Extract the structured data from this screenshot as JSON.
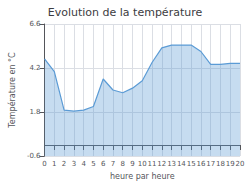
{
  "chart_data": {
    "type": "area",
    "title": "Evolution de la température",
    "xlabel": "heure par heure",
    "ylabel": "Température en °C",
    "x": [
      0,
      1,
      2,
      3,
      4,
      5,
      6,
      7,
      8,
      9,
      10,
      11,
      12,
      13,
      14,
      15,
      16,
      17,
      18,
      19,
      20
    ],
    "values": [
      4.7,
      4.0,
      1.9,
      1.85,
      1.9,
      2.1,
      3.6,
      3.0,
      2.85,
      3.1,
      3.5,
      4.5,
      5.3,
      5.45,
      5.45,
      5.45,
      5.1,
      4.4,
      4.4,
      4.45,
      4.45
    ],
    "color": "#5b9bd5",
    "xlim": [
      0,
      20
    ],
    "xticks": [
      0,
      1,
      2,
      3,
      4,
      5,
      6,
      7,
      8,
      9,
      10,
      11,
      12,
      13,
      14,
      15,
      16,
      17,
      18,
      19,
      20
    ],
    "ylim": [
      -0.6,
      6.6
    ],
    "yticks": [
      -0.6,
      1.8,
      4.2,
      6.6
    ],
    "grid": true
  }
}
